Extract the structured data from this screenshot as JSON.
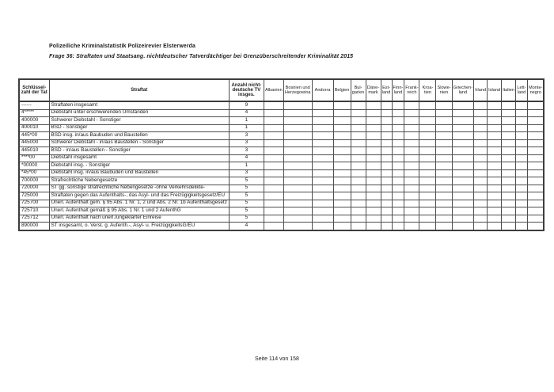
{
  "page": {
    "title": "Polizeiliche Kriminalstatistik Polizeirevier Elsterwerda",
    "subtitle": "Frage 36: Straftaten und Staatsang. nichtdeutscher Tatverdächtiger bei Grenzüberschreitender Kriminalität 2015",
    "footer": "Seite 114 von 158"
  },
  "table": {
    "headers": {
      "key": "Schlüssel-zahl der Tat",
      "offense": "Straftat",
      "count": "Anzahl nicht-deutsche TV insges."
    },
    "countries": [
      "Albanien",
      "Bosnien und Herzegowina",
      "Andorra",
      "Belgien",
      "Bul-garien",
      "Däne-mark",
      "Est-land",
      "Finn-land",
      "Frank-reich",
      "Kroa-tien",
      "Slowe-nien",
      "Griechen-land",
      "Irland",
      "Island",
      "Italien",
      "Lett-land",
      "Monte-negro"
    ],
    "rows": [
      {
        "key": "------",
        "offense": "Straftaten insgesamt",
        "count": "9"
      },
      {
        "key": "4*****",
        "offense": "Diebstahl unter erschwerenden Umständen",
        "count": "4"
      },
      {
        "key": "400000",
        "offense": "Schwerer Diebstahl - Sonstiger",
        "count": "1"
      },
      {
        "key": "400010",
        "offense": "BSD - Sonstiger",
        "count": "1"
      },
      {
        "key": "445*00",
        "offense": "BSD insg. in/aus Baubuden und Baustellen",
        "count": "3"
      },
      {
        "key": "445000",
        "offense": "Schwerer Diebstahl - in/aus Baustellen - Sonstiger",
        "count": "3"
      },
      {
        "key": "445010",
        "offense": "BSD - in/aus Baustellen - Sonstiger",
        "count": "3"
      },
      {
        "key": "****00",
        "offense": "Diebstahl insgesamt",
        "count": "4"
      },
      {
        "key": "*00000",
        "offense": "Diebstahl insg. - Sonstiger",
        "count": "1"
      },
      {
        "key": "*45*00",
        "offense": "Diebstahl insg. in/aus Baubuden und Baustellen",
        "count": "3"
      },
      {
        "key": "700000",
        "offense": "Strafrechtliche Nebengesetze",
        "count": "5"
      },
      {
        "key": "720000",
        "offense": "ST gg. sonstige strafrechtliche Nebengesetze -ohne Verkehrsdelikte-",
        "count": "5"
      },
      {
        "key": "725000",
        "offense": "Straftaten gegen das Aufenthalts-, das Asyl- und das Freizügigkeitsgesetz/EU",
        "count": "5"
      },
      {
        "key": "725700",
        "offense": "Unerl. Aufenthalt gem. § 95 Abs. 1 Nr. 1, 2 und Abs. 2 Nr. 1b Aufenthaltsgesetz",
        "count": "5"
      },
      {
        "key": "725710",
        "offense": "Unerl. Aufenthalt gemäß § 95 Abs. 1 Nr. 1 und 2 AufenthG",
        "count": "5"
      },
      {
        "key": "725712",
        "offense": "Unerl. Aufenthalt nach unerl./ungeklärter Einreise",
        "count": "5"
      },
      {
        "key": "890000",
        "offense": "ST insgesamt, o. Verst. g. Aufenth.-, Asyl- u. FreizügigkeitsG/EU",
        "count": "4"
      }
    ]
  }
}
